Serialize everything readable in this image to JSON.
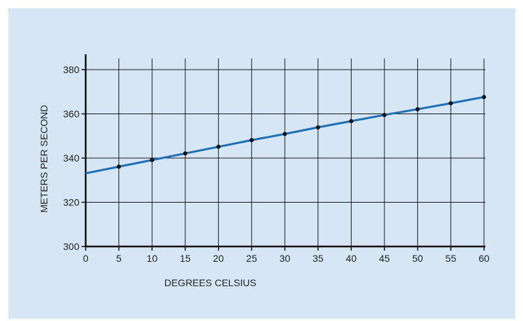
{
  "chart_data": {
    "type": "line",
    "xlabel": "DEGREES CELSIUS",
    "ylabel": "METERS PER SECOND",
    "xlim": [
      0,
      60
    ],
    "ylim": [
      300,
      380
    ],
    "x_ticks": [
      "0",
      "5",
      "10",
      "15",
      "20",
      "25",
      "30",
      "35",
      "40",
      "45",
      "50",
      "55",
      "60"
    ],
    "y_ticks": [
      "300",
      "320",
      "340",
      "360",
      "380"
    ],
    "grid": true,
    "series": [
      {
        "x": [
          0,
          5,
          10,
          15,
          20,
          25,
          30,
          35,
          40,
          45,
          50,
          55,
          60
        ],
        "values": [
          333.1,
          336.1,
          339.1,
          342.1,
          345.1,
          348.1,
          350.9,
          353.9,
          356.7,
          359.5,
          362.1,
          364.8,
          367.6
        ],
        "markers_at_x": [
          5,
          10,
          15,
          20,
          25,
          30,
          35,
          40,
          45,
          50,
          55,
          60
        ]
      }
    ],
    "colors": {
      "background": "#d6e6f5",
      "line": "#1f6fb5",
      "marker": "#111111",
      "grid": "#1a1a1a",
      "axis": "#111111"
    }
  }
}
